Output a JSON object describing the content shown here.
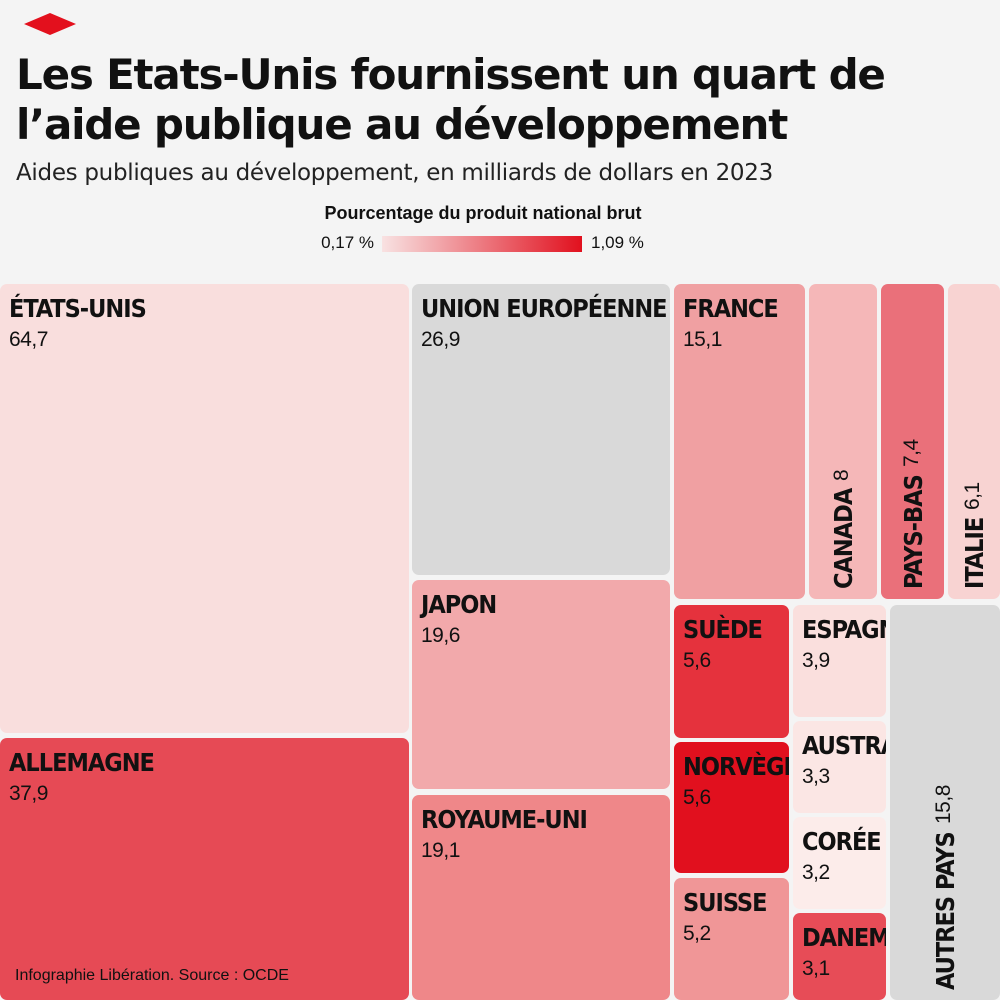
{
  "header": {
    "title": "Les Etats-Unis fournissent un quart de l’aide publique au développement",
    "subtitle": "Aides publiques au développement, en milliards de dollars en 2023"
  },
  "legend": {
    "title": "Pourcentage du produit national brut",
    "min_label": "0,17 %",
    "max_label": "1,09 %",
    "color_low": "#f8e2e2",
    "color_high": "#e1101e"
  },
  "colors": {
    "logo": "#e3101d",
    "no_data": "#d9d9d9"
  },
  "chart_data": {
    "type": "treemap",
    "title": "Les Etats-Unis fournissent un quart de l’aide publique au développement",
    "subtitle": "Aides publiques au développement, en milliards de dollars en 2023",
    "value_unit": "milliards de dollars",
    "color_scale": {
      "label": "Pourcentage du produit national brut",
      "min": "0,17 %",
      "max": "1,09 %"
    },
    "items": [
      {
        "name": "ÉTATS-UNIS",
        "value": "64,7",
        "color": "#f9dedd"
      },
      {
        "name": "ALLEMAGNE",
        "value": "37,9",
        "color": "#e64a55"
      },
      {
        "name": "UNION EUROPÉENNE",
        "value": "26,9",
        "color": "#d9d9d9"
      },
      {
        "name": "JAPON",
        "value": "19,6",
        "color": "#f2a9ab"
      },
      {
        "name": "ROYAUME-UNI",
        "value": "19,1",
        "color": "#ef8789"
      },
      {
        "name": "FRANCE",
        "value": "15,1",
        "color": "#f0a0a2"
      },
      {
        "name": "CANADA",
        "value": "8",
        "color": "#f5b7b8"
      },
      {
        "name": "PAYS-BAS",
        "value": "7,4",
        "color": "#ea707a"
      },
      {
        "name": "ITALIE",
        "value": "6,1",
        "color": "#f8d3d2"
      },
      {
        "name": "SUÈDE",
        "value": "5,6",
        "color": "#e5323d"
      },
      {
        "name": "NORVÈGE",
        "value": "5,6",
        "color": "#e1101e"
      },
      {
        "name": "SUISSE",
        "value": "5,2",
        "color": "#f09697"
      },
      {
        "name": "ESPAGNE",
        "value": "3,9",
        "color": "#fadfdd"
      },
      {
        "name": "AUSTRALIE",
        "value": "3,3",
        "color": "#fbe6e4"
      },
      {
        "name": "CORÉE",
        "value": "3,2",
        "color": "#fcecea"
      },
      {
        "name": "DANEMARK",
        "value": "3,1",
        "color": "#e74c57"
      },
      {
        "name": "AUTRES PAYS",
        "value": "15,8",
        "color": "#d9d9d9"
      }
    ]
  },
  "footer": {
    "source": "Infographie Libération. Source : OCDE"
  }
}
